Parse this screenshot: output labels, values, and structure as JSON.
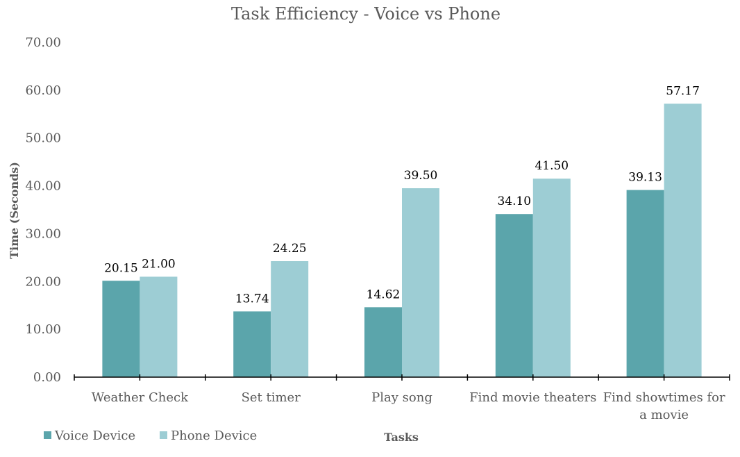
{
  "chart_data": {
    "type": "bar",
    "title": "Task Efficiency - Voice vs Phone",
    "xlabel": "Tasks",
    "ylabel": "Time (Seconds)",
    "ylim": [
      0,
      70
    ],
    "yticks": [
      "0.00",
      "10.00",
      "20.00",
      "30.00",
      "40.00",
      "50.00",
      "60.00",
      "70.00"
    ],
    "categories": [
      "Weather Check",
      "Set timer",
      "Play song",
      "Find movie theaters",
      "Find showtimes for a movie"
    ],
    "category_lines": [
      [
        "Weather Check"
      ],
      [
        "Set timer"
      ],
      [
        "Play song"
      ],
      [
        "Find movie theaters"
      ],
      [
        "Find showtimes for",
        "a movie"
      ]
    ],
    "series": [
      {
        "name": "Voice Device",
        "color": "#5BA5AB",
        "values": [
          20.15,
          13.74,
          14.62,
          34.1,
          39.13
        ],
        "labels": [
          "20.15",
          "13.74",
          "14.62",
          "34.10",
          "39.13"
        ]
      },
      {
        "name": "Phone Device",
        "color": "#9DCDD4",
        "values": [
          21.0,
          24.25,
          39.5,
          41.5,
          57.17
        ],
        "labels": [
          "21.00",
          "24.25",
          "39.50",
          "41.50",
          "57.17"
        ]
      }
    ],
    "grid": false,
    "legend_position": "bottom-left"
  }
}
